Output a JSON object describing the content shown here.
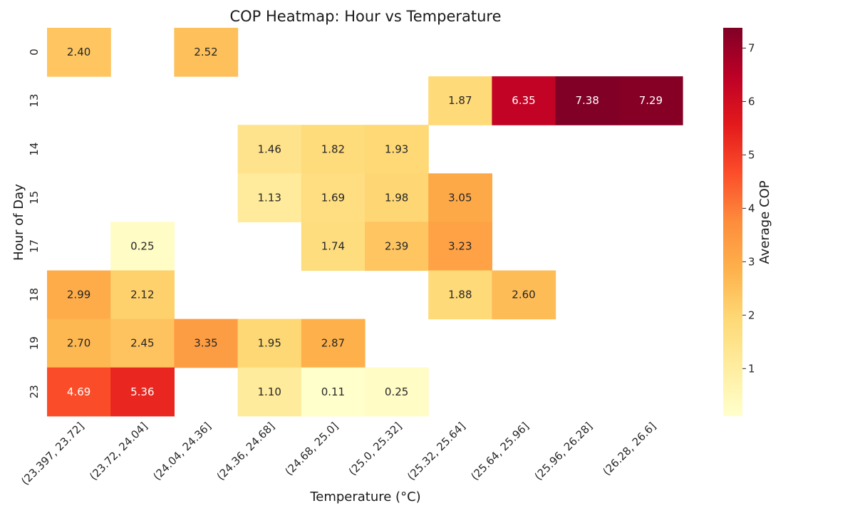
{
  "chart_data": {
    "type": "heatmap",
    "title": "COP Heatmap: Hour vs Temperature",
    "xlabel": "Temperature (°C)",
    "ylabel": "Hour of Day",
    "colorbar_label": "Average COP",
    "colormap": "YlOrRd",
    "value_range": [
      0.11,
      7.38
    ],
    "colorbar_ticks": [
      "1",
      "2",
      "3",
      "4",
      "5",
      "6",
      "7"
    ],
    "x_categories": [
      "(23.397, 23.72]",
      "(23.72, 24.04]",
      "(24.04, 24.36]",
      "(24.36, 24.68]",
      "(24.68, 25.0]",
      "(25.0, 25.32]",
      "(25.32, 25.64]",
      "(25.64, 25.96]",
      "(25.96, 26.28]",
      "(26.28, 26.6]"
    ],
    "y_categories": [
      "0",
      "13",
      "14",
      "15",
      "17",
      "18",
      "19",
      "23"
    ],
    "values": [
      [
        2.4,
        null,
        2.52,
        null,
        null,
        null,
        null,
        null,
        null,
        null
      ],
      [
        null,
        null,
        null,
        null,
        null,
        null,
        1.87,
        6.35,
        7.38,
        7.29
      ],
      [
        null,
        null,
        null,
        1.46,
        1.82,
        1.93,
        null,
        null,
        null,
        null
      ],
      [
        null,
        null,
        null,
        1.13,
        1.69,
        1.98,
        3.05,
        null,
        null,
        null
      ],
      [
        null,
        0.25,
        null,
        null,
        1.74,
        2.39,
        3.23,
        null,
        null,
        null
      ],
      [
        2.99,
        2.12,
        null,
        null,
        null,
        null,
        1.88,
        2.6,
        null,
        null
      ],
      [
        2.7,
        2.45,
        3.35,
        1.95,
        2.87,
        null,
        null,
        null,
        null,
        null
      ],
      [
        4.69,
        5.36,
        null,
        1.1,
        0.11,
        0.25,
        null,
        null,
        null,
        null
      ]
    ]
  }
}
